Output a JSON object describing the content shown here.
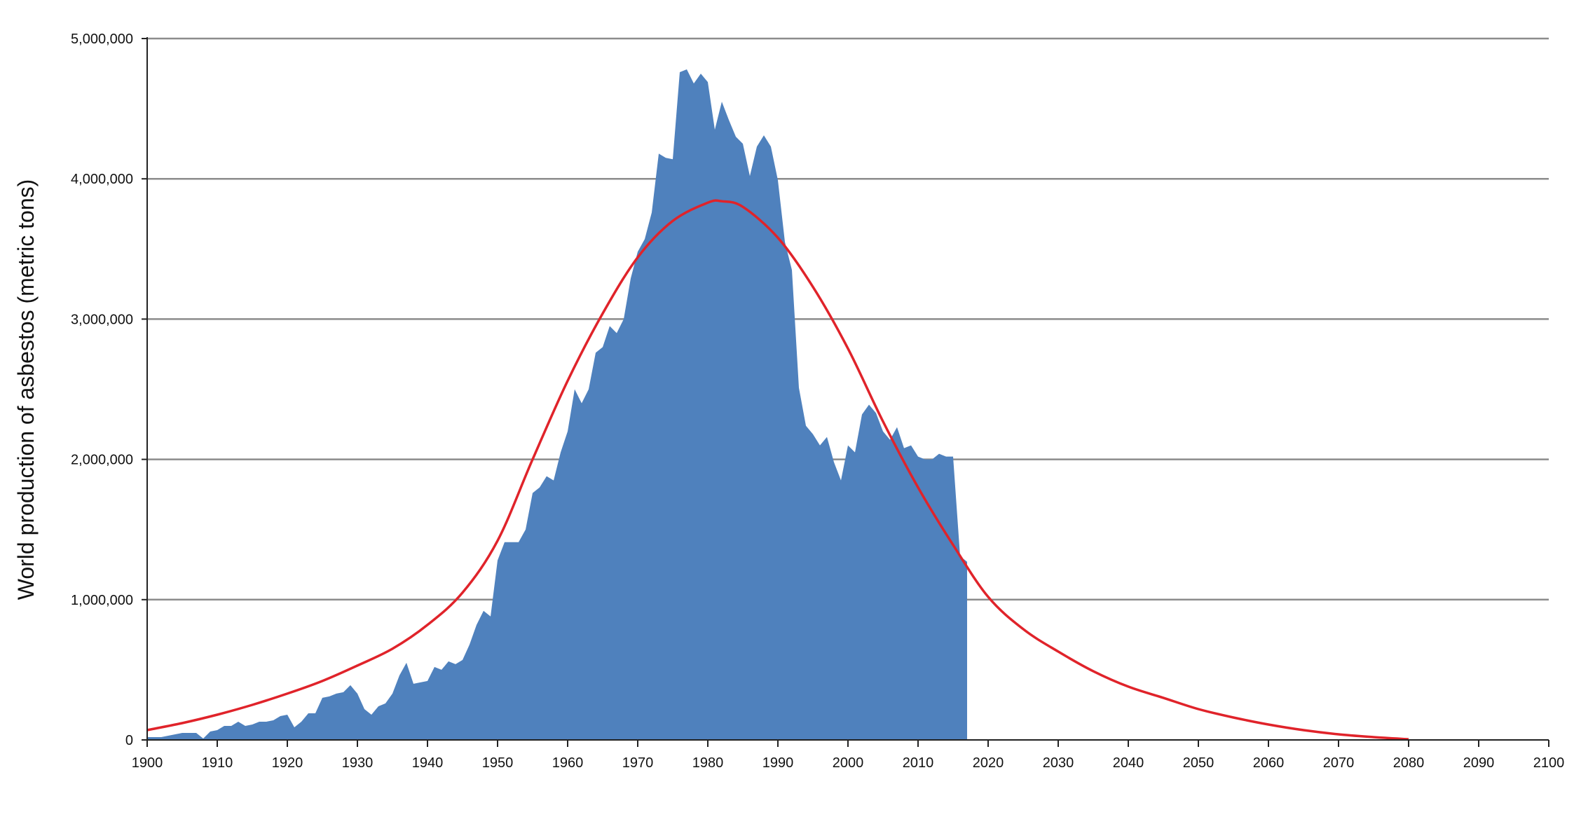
{
  "chart_data": {
    "type": "area",
    "title": "",
    "xlabel": "",
    "ylabel": "World production of asbestos (metric tons)",
    "xlim": [
      1900,
      2100
    ],
    "ylim": [
      0,
      5000000
    ],
    "x_ticks": [
      1900,
      1910,
      1920,
      1930,
      1940,
      1950,
      1960,
      1970,
      1980,
      1990,
      2000,
      2010,
      2020,
      2030,
      2040,
      2050,
      2060,
      2070,
      2080,
      2090,
      2100
    ],
    "x_tick_labels": [
      "1900",
      "1910",
      "1920",
      "1930",
      "1940",
      "1950",
      "1960",
      "1970",
      "1980",
      "1990",
      "2000",
      "2010",
      "2020",
      "2030",
      "2040",
      "2050",
      "2060",
      "2070",
      "2080",
      "2090",
      "2100"
    ],
    "y_ticks": [
      0,
      1000000,
      2000000,
      3000000,
      4000000,
      5000000
    ],
    "y_tick_labels": [
      "0",
      "1,000,000",
      "2,000,000",
      "3,000,000",
      "4,000,000",
      "5,000,000"
    ],
    "grid": "horizontal",
    "colors": {
      "area": "#4f81bd",
      "curve": "#e0232a",
      "grid": "#8c8c8c",
      "axis": "#222222"
    },
    "series": [
      {
        "type": "area",
        "x": [
          1900,
          1901,
          1902,
          1903,
          1904,
          1905,
          1906,
          1907,
          1908,
          1909,
          1910,
          1911,
          1912,
          1913,
          1914,
          1915,
          1916,
          1917,
          1918,
          1919,
          1920,
          1921,
          1922,
          1923,
          1924,
          1925,
          1926,
          1927,
          1928,
          1929,
          1930,
          1931,
          1932,
          1933,
          1934,
          1935,
          1936,
          1937,
          1938,
          1939,
          1940,
          1941,
          1942,
          1943,
          1944,
          1945,
          1946,
          1947,
          1948,
          1949,
          1950,
          1951,
          1952,
          1953,
          1954,
          1955,
          1956,
          1957,
          1958,
          1959,
          1960,
          1961,
          1962,
          1963,
          1964,
          1965,
          1966,
          1967,
          1968,
          1969,
          1970,
          1971,
          1972,
          1973,
          1974,
          1975,
          1976,
          1977,
          1978,
          1979,
          1980,
          1981,
          1982,
          1983,
          1984,
          1985,
          1986,
          1987,
          1988,
          1989,
          1990,
          1991,
          1992,
          1993,
          1994,
          1995,
          1996,
          1997,
          1998,
          1999,
          2000,
          2001,
          2002,
          2003,
          2004,
          2005,
          2006,
          2007,
          2008,
          2009,
          2010,
          2011,
          2012,
          2013,
          2014,
          2015,
          2016,
          2017
        ],
        "values": [
          20000,
          20000,
          20000,
          30000,
          40000,
          50000,
          50000,
          50000,
          10000,
          60000,
          70000,
          100000,
          100000,
          130000,
          100000,
          110000,
          130000,
          130000,
          140000,
          170000,
          180000,
          90000,
          130000,
          190000,
          190000,
          300000,
          310000,
          330000,
          340000,
          390000,
          330000,
          220000,
          180000,
          240000,
          260000,
          330000,
          460000,
          550000,
          400000,
          410000,
          420000,
          520000,
          500000,
          560000,
          540000,
          570000,
          680000,
          820000,
          920000,
          880000,
          1280000,
          1410000,
          1410000,
          1410000,
          1500000,
          1760000,
          1800000,
          1880000,
          1850000,
          2050000,
          2200000,
          2500000,
          2400000,
          2500000,
          2760000,
          2800000,
          2950000,
          2900000,
          3000000,
          3290000,
          3480000,
          3570000,
          3760000,
          4180000,
          4150000,
          4140000,
          4760000,
          4780000,
          4680000,
          4750000,
          4690000,
          4350000,
          4550000,
          4420000,
          4300000,
          4250000,
          4020000,
          4230000,
          4310000,
          4230000,
          3990000,
          3550000,
          3350000,
          2510000,
          2240000,
          2180000,
          2100000,
          2160000,
          1980000,
          1850000,
          2100000,
          2050000,
          2320000,
          2390000,
          2330000,
          2200000,
          2140000,
          2230000,
          2080000,
          2100000,
          2020000,
          2000000,
          2000000,
          2040000,
          2020000,
          2020000,
          1310000,
          1270000
        ]
      },
      {
        "type": "line",
        "x": [
          1900,
          1905,
          1910,
          1915,
          1920,
          1925,
          1930,
          1935,
          1940,
          1945,
          1950,
          1955,
          1960,
          1965,
          1970,
          1975,
          1980,
          1982,
          1985,
          1990,
          1995,
          2000,
          2005,
          2010,
          2015,
          2020,
          2025,
          2030,
          2035,
          2040,
          2045,
          2050,
          2055,
          2060,
          2065,
          2070,
          2075,
          2080
        ],
        "values": [
          70000,
          120000,
          180000,
          250000,
          330000,
          420000,
          530000,
          650000,
          820000,
          1050000,
          1420000,
          2000000,
          2560000,
          3040000,
          3440000,
          3700000,
          3830000,
          3840000,
          3800000,
          3580000,
          3230000,
          2790000,
          2270000,
          1800000,
          1390000,
          1020000,
          790000,
          630000,
          490000,
          380000,
          300000,
          220000,
          160000,
          110000,
          70000,
          40000,
          20000,
          5000
        ]
      }
    ]
  }
}
